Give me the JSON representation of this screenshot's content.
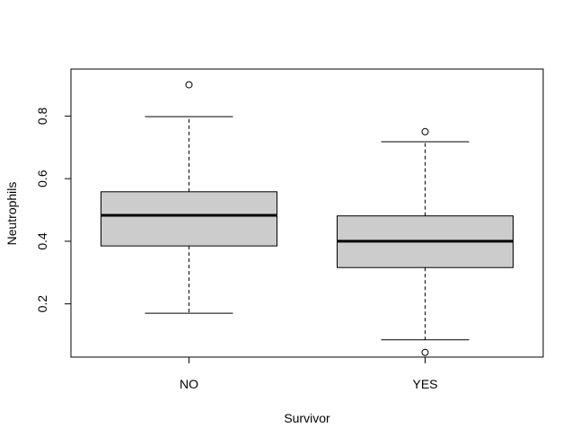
{
  "chart_data": {
    "type": "boxplot",
    "title": "",
    "xlabel": "Survivor",
    "ylabel": "Neutrophils",
    "categories": [
      "NO",
      "YES"
    ],
    "ylim": [
      0.03,
      0.95
    ],
    "yticks": [
      0.2,
      0.4,
      0.6,
      0.8
    ],
    "ytick_labels": [
      "0.2",
      "0.4",
      "0.6",
      "0.8"
    ],
    "grid": false,
    "legend": "none",
    "box_fill": "#cccccc",
    "line_color": "#000000",
    "boxes": [
      {
        "category": "NO",
        "whisker_low": 0.17,
        "q1": 0.385,
        "median": 0.483,
        "q3": 0.558,
        "whisker_high": 0.798,
        "outliers": [
          0.9
        ]
      },
      {
        "category": "YES",
        "whisker_low": 0.085,
        "q1": 0.316,
        "median": 0.4,
        "q3": 0.481,
        "whisker_high": 0.718,
        "outliers": [
          0.75,
          0.045
        ]
      }
    ]
  }
}
